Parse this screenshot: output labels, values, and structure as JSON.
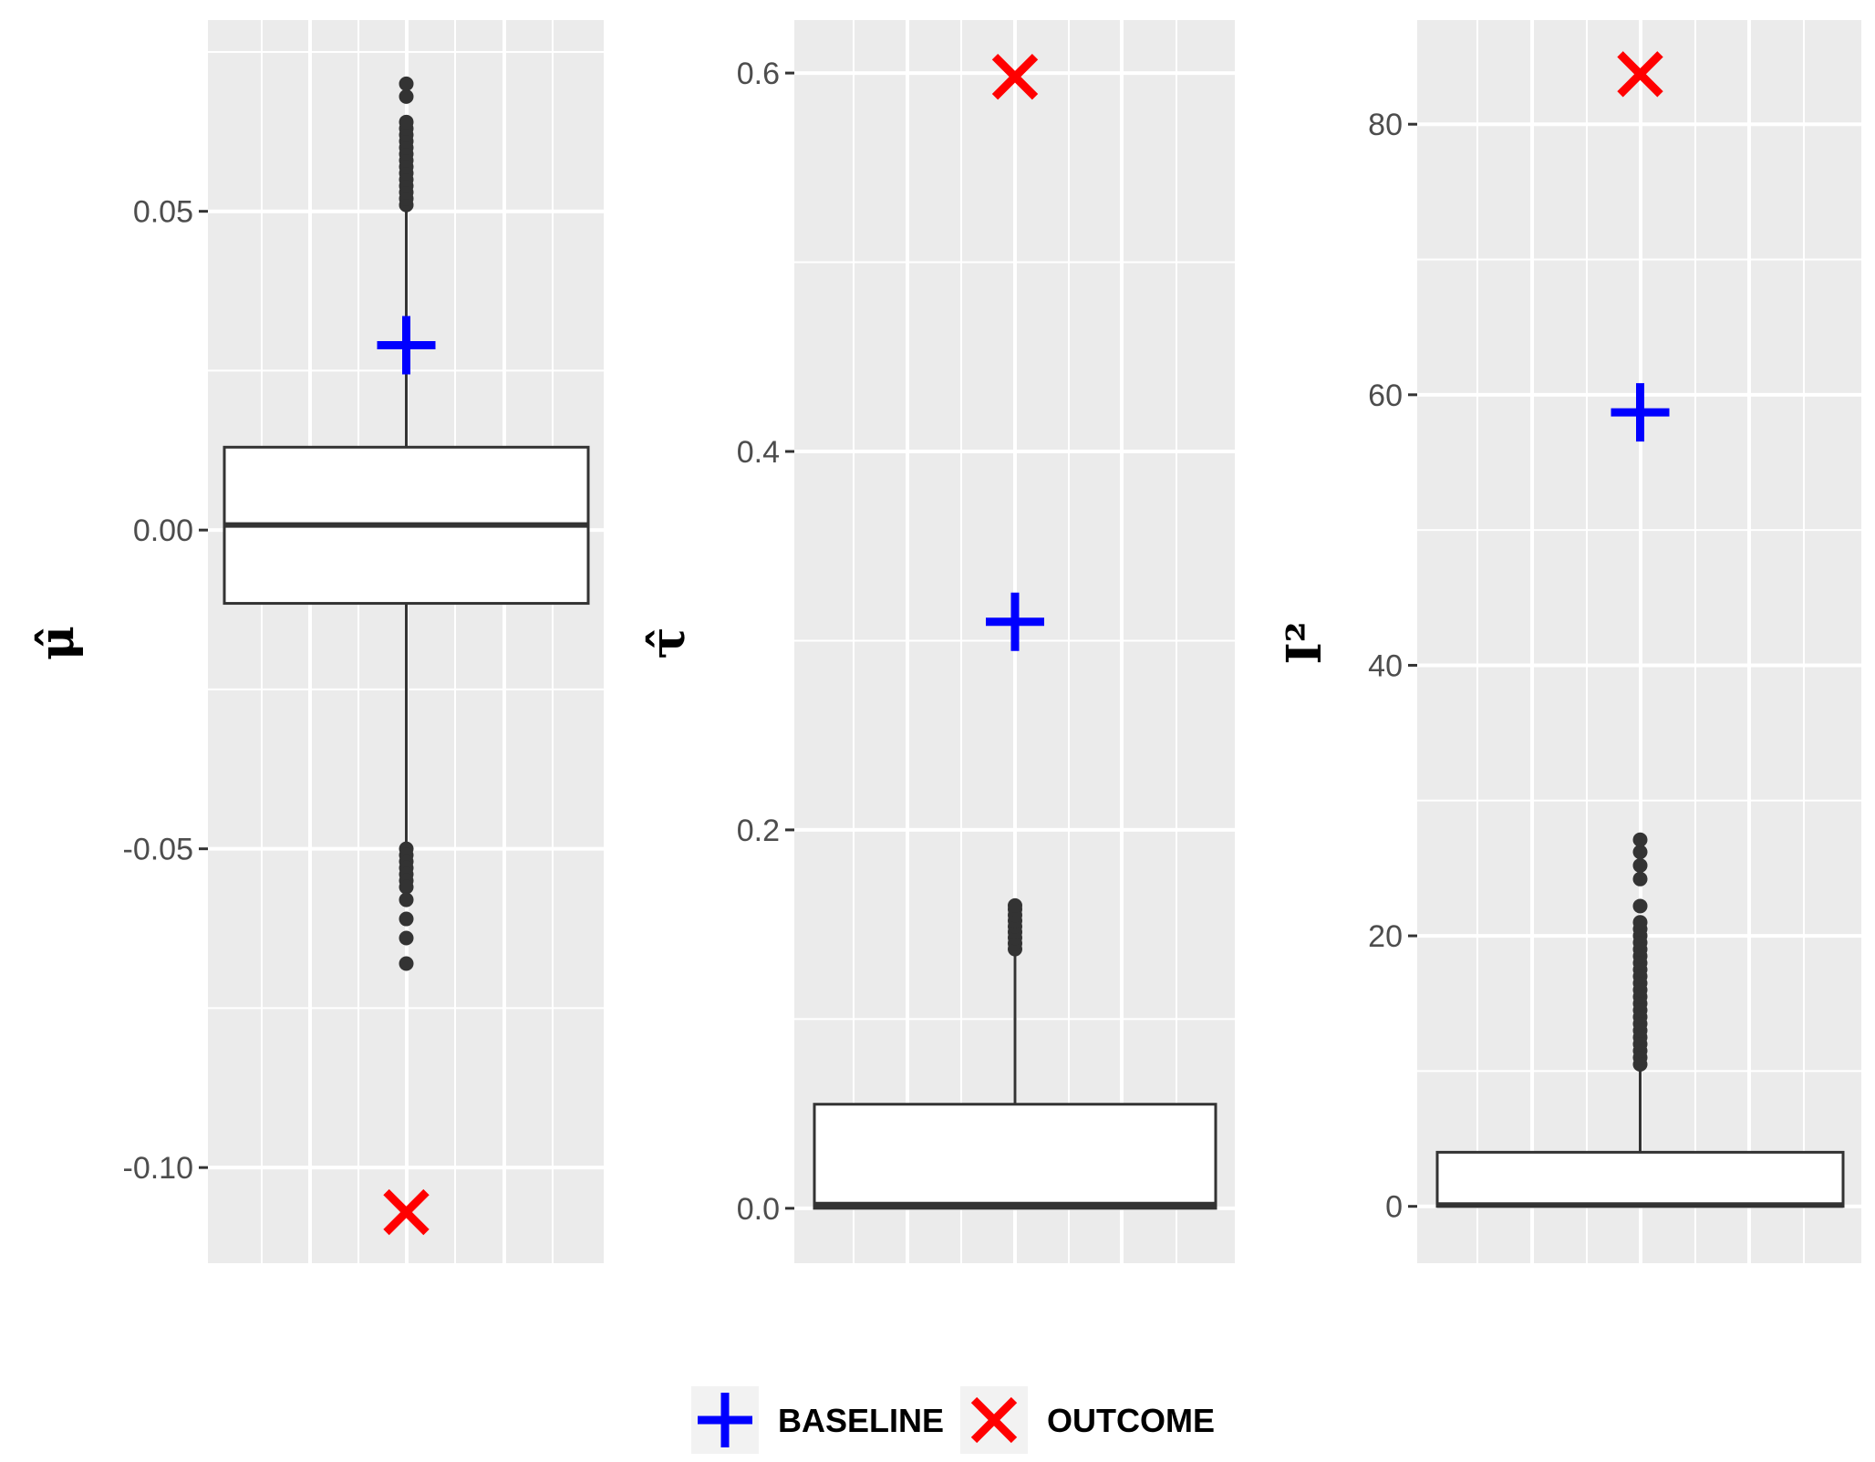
{
  "chart_data": [
    {
      "type": "box",
      "ylabel": "μ̂",
      "yticks": [
        -0.1,
        -0.05,
        0.0,
        0.05
      ],
      "ytick_labels": [
        "-0.10",
        "-0.05",
        "0.00",
        "0.05"
      ],
      "ylim": [
        -0.115,
        0.08
      ],
      "box": {
        "q1": -0.0115,
        "median": 0.0008,
        "q3": 0.013,
        "whisker_low": -0.049,
        "whisker_high": 0.05,
        "outliers": [
          0.051,
          0.052,
          0.053,
          0.054,
          0.055,
          0.056,
          0.057,
          0.058,
          0.059,
          0.06,
          0.061,
          0.062,
          0.063,
          0.064,
          0.068,
          0.07,
          -0.05,
          -0.051,
          -0.052,
          -0.053,
          -0.054,
          -0.055,
          -0.056,
          -0.058,
          -0.061,
          -0.064,
          -0.068
        ]
      },
      "markers": {
        "baseline": 0.029,
        "outcome": -0.107
      },
      "grid": true
    },
    {
      "type": "box",
      "ylabel": "τ̂",
      "yticks": [
        0.0,
        0.2,
        0.4,
        0.6
      ],
      "ytick_labels": [
        "0.0",
        "0.2",
        "0.4",
        "0.6"
      ],
      "ylim": [
        -0.029,
        0.628
      ],
      "box": {
        "q1": 0.0,
        "median": 0.002,
        "q3": 0.055,
        "whisker_low": 0.0,
        "whisker_high": 0.134,
        "outliers": [
          0.137,
          0.14,
          0.143,
          0.146,
          0.149,
          0.152,
          0.155,
          0.158,
          0.16
        ]
      },
      "markers": {
        "baseline": 0.31,
        "outcome": 0.598
      },
      "grid": true
    },
    {
      "type": "box",
      "ylabel": "I²",
      "yticks": [
        0,
        20,
        40,
        60,
        80
      ],
      "ytick_labels": [
        "0",
        "20",
        "40",
        "60",
        "80"
      ],
      "ylim": [
        -4.2,
        87.7
      ],
      "box": {
        "q1": 0.0,
        "median": 0.1,
        "q3": 4.0,
        "whisker_low": 0.0,
        "whisker_high": 10.0,
        "outliers": [
          10.5,
          11,
          11.5,
          12,
          12.5,
          13,
          13.5,
          14,
          14.5,
          15,
          15.5,
          16,
          16.5,
          17,
          17.5,
          18,
          18.5,
          19,
          19.5,
          20,
          20.5,
          21,
          22.2,
          24.2,
          25.2,
          26.2,
          27.1
        ]
      },
      "markers": {
        "baseline": 58.7,
        "outcome": 83.7
      },
      "grid": true
    }
  ],
  "legend": {
    "placement": "bottom",
    "items": [
      {
        "label": "BASELINE",
        "shape": "plus",
        "color": "#0000ff"
      },
      {
        "label": "OUTCOME",
        "shape": "cross",
        "color": "#ff0000"
      }
    ]
  },
  "colors": {
    "panel_bg": "#ebebeb",
    "grid": "#ffffff",
    "box_line": "#333333",
    "tick_text": "#4d4d4d"
  }
}
